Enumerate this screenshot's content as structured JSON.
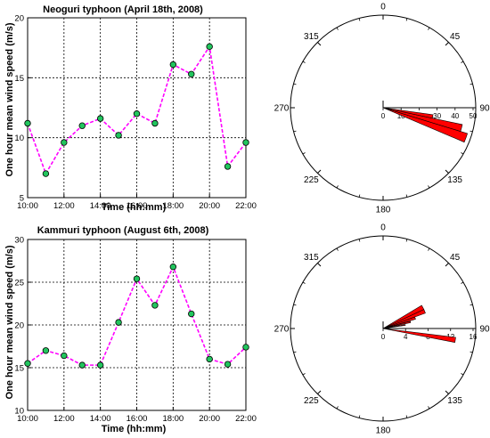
{
  "chart_data": [
    {
      "type": "line",
      "title": "Neoguri typhoon (April 18th, 2008)",
      "xlabel": "Time (hh:mm)",
      "ylabel": "One hour mean wind speed (m/s)",
      "x_tick_labels": [
        "10:00",
        "12:00",
        "14:00",
        "16:00",
        "18:00",
        "20:00",
        "22:00"
      ],
      "y_tick_labels": [
        "5",
        "10",
        "15",
        "20"
      ],
      "x": [
        10,
        11,
        12,
        13,
        14,
        15,
        16,
        17,
        18,
        19,
        20,
        21,
        22
      ],
      "values": [
        11.2,
        7.0,
        9.6,
        11.0,
        11.6,
        10.2,
        12.0,
        11.2,
        16.1,
        15.3,
        17.6,
        7.6,
        9.6
      ],
      "xlim": [
        10,
        22
      ],
      "ylim": [
        5,
        20
      ],
      "grid": true,
      "line_color": "#ff00ff",
      "marker_color": "#22c55e"
    },
    {
      "type": "polar-rose",
      "direction_labels": [
        "0",
        "45",
        "90",
        "135",
        "180",
        "225",
        "270",
        "315"
      ],
      "radial_tick_labels": [
        "0",
        "10",
        "20",
        "30",
        "40",
        "50"
      ],
      "rmax": 50,
      "bars": [
        {
          "angle_start": 107,
          "angle_end": 113,
          "length": 49
        },
        {
          "angle_start": 102,
          "angle_end": 107,
          "length": 45
        },
        {
          "angle_start": 98,
          "angle_end": 102,
          "length": 28
        }
      ],
      "bar_color": "#ff0000"
    },
    {
      "type": "line",
      "title": "Kammuri typhoon (August 6th, 2008)",
      "xlabel": "Time (hh:mm)",
      "ylabel": "One hour mean wind speed (m/s)",
      "x_tick_labels": [
        "10:00",
        "12:00",
        "14:00",
        "16:00",
        "18:00",
        "20:00",
        "22:00"
      ],
      "y_tick_labels": [
        "10",
        "15",
        "20",
        "25",
        "30"
      ],
      "x": [
        10,
        11,
        12,
        13,
        14,
        15,
        16,
        17,
        18,
        19,
        20,
        21,
        22
      ],
      "values": [
        15.5,
        17.0,
        16.4,
        15.3,
        15.3,
        20.3,
        25.4,
        22.3,
        26.8,
        21.3,
        16.0,
        15.4,
        17.4
      ],
      "xlim": [
        10,
        22
      ],
      "ylim": [
        10,
        30
      ],
      "grid": true,
      "line_color": "#ff00ff",
      "marker_color": "#22c55e"
    },
    {
      "type": "polar-rose",
      "direction_labels": [
        "0",
        "45",
        "90",
        "135",
        "180",
        "225",
        "270",
        "315"
      ],
      "radial_tick_labels": [
        "0",
        "4",
        "8",
        "12",
        "16"
      ],
      "rmax": 16,
      "bars": [
        {
          "angle_start": 59,
          "angle_end": 65,
          "length": 8
        },
        {
          "angle_start": 65,
          "angle_end": 70,
          "length": 8
        },
        {
          "angle_start": 70,
          "angle_end": 74,
          "length": 6
        },
        {
          "angle_start": 75,
          "angle_end": 78,
          "length": 5
        },
        {
          "angle_start": 80,
          "angle_end": 82,
          "length": 4
        },
        {
          "angle_start": 97,
          "angle_end": 101,
          "length": 13
        }
      ],
      "bar_color": "#ff0000"
    }
  ]
}
